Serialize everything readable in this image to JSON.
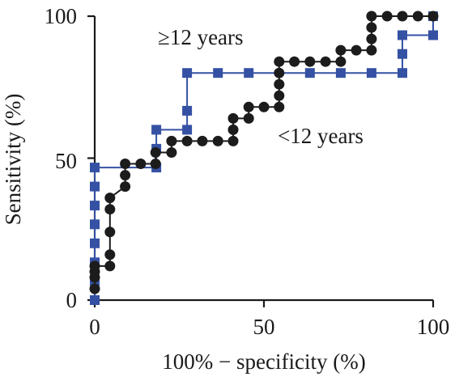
{
  "chart_data": {
    "type": "line",
    "xlabel": "100% − specificity (%)",
    "ylabel": "Sensitivity (%)",
    "xlim": [
      0,
      100
    ],
    "ylim": [
      0,
      100
    ],
    "x_ticks": [
      "0",
      "50",
      "100"
    ],
    "y_ticks": [
      "0",
      "50",
      "100"
    ],
    "grid": false,
    "annotations": [
      {
        "text": "≥12 years",
        "series": "≥12 years"
      },
      {
        "text": "<12 years",
        "series": "<12 years"
      }
    ],
    "series": [
      {
        "name": "<12 years",
        "color": "#1c1c1c",
        "marker": "circle",
        "points": [
          [
            0,
            4
          ],
          [
            0,
            8
          ],
          [
            0,
            10
          ],
          [
            0,
            12
          ],
          [
            4.5,
            12
          ],
          [
            4.5,
            16
          ],
          [
            4.5,
            24
          ],
          [
            4.5,
            32
          ],
          [
            4.5,
            36
          ],
          [
            9,
            40
          ],
          [
            9,
            44
          ],
          [
            9,
            48
          ],
          [
            13.6,
            48
          ],
          [
            18,
            48
          ],
          [
            18,
            52
          ],
          [
            22.7,
            52
          ],
          [
            22.7,
            56
          ],
          [
            27.3,
            56
          ],
          [
            31.8,
            56
          ],
          [
            36.4,
            56
          ],
          [
            40.9,
            56
          ],
          [
            40.9,
            60
          ],
          [
            40.9,
            64
          ],
          [
            45.5,
            64
          ],
          [
            45.5,
            68
          ],
          [
            50,
            68
          ],
          [
            54.5,
            68
          ],
          [
            54.5,
            72
          ],
          [
            54.5,
            76
          ],
          [
            54.5,
            80
          ],
          [
            54.5,
            84
          ],
          [
            59,
            84
          ],
          [
            63.6,
            84
          ],
          [
            68.2,
            84
          ],
          [
            72.7,
            84
          ],
          [
            72.7,
            88
          ],
          [
            77.3,
            88
          ],
          [
            81.8,
            88
          ],
          [
            81.8,
            92
          ],
          [
            81.8,
            96
          ],
          [
            81.8,
            100
          ],
          [
            86.4,
            100
          ],
          [
            90.9,
            100
          ],
          [
            95.5,
            100
          ],
          [
            100,
            100
          ]
        ]
      },
      {
        "name": "≥12 years",
        "color": "#3551a4",
        "marker": "square",
        "points": [
          [
            0,
            0
          ],
          [
            0,
            6.7
          ],
          [
            0,
            13.3
          ],
          [
            0,
            20
          ],
          [
            0,
            26.7
          ],
          [
            0,
            33.3
          ],
          [
            0,
            40
          ],
          [
            0,
            46.7
          ],
          [
            18.2,
            46.7
          ],
          [
            18.2,
            53.3
          ],
          [
            18.2,
            60
          ],
          [
            27.3,
            60
          ],
          [
            27.3,
            66.7
          ],
          [
            27.3,
            80
          ],
          [
            36.4,
            80
          ],
          [
            45.5,
            80
          ],
          [
            63.6,
            80
          ],
          [
            72.7,
            80
          ],
          [
            81.8,
            80
          ],
          [
            90.9,
            80
          ],
          [
            90.9,
            86.7
          ],
          [
            90.9,
            93.3
          ],
          [
            100,
            93.3
          ],
          [
            100,
            100
          ]
        ]
      }
    ]
  }
}
